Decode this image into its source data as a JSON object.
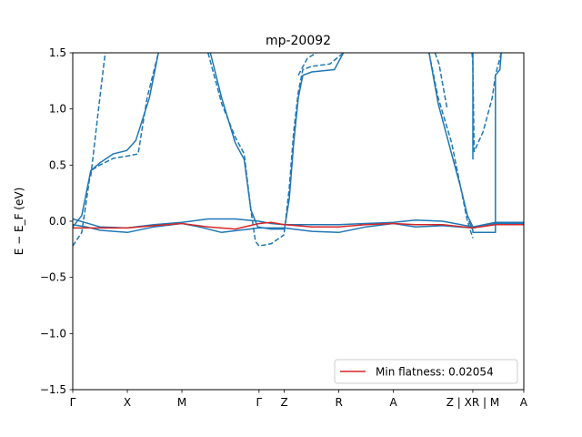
{
  "chart_data": {
    "type": "line",
    "title": "mp-20092",
    "ylabel": "E − E_F (eV)",
    "ylim": [
      -1.5,
      1.5
    ],
    "yticks": [
      1.5,
      1.0,
      0.5,
      0.0,
      -0.5,
      -1.0,
      -1.5
    ],
    "ytick_labels": [
      "1.5",
      "1.0",
      "0.5",
      "0.0",
      "−0.5",
      "−1.0",
      "−1.5"
    ],
    "xlim": [
      0,
      1
    ],
    "kpoints": [
      {
        "label": "Γ",
        "x": 0.0
      },
      {
        "label": "X",
        "x": 0.121
      },
      {
        "label": "M",
        "x": 0.242
      },
      {
        "label": "Γ",
        "x": 0.413
      },
      {
        "label": "Z",
        "x": 0.469
      },
      {
        "label": "R",
        "x": 0.59
      },
      {
        "label": "A",
        "x": 0.711
      },
      {
        "label": "Z | XR | M",
        "x": 0.887
      },
      {
        "label": "A",
        "x": 1.0
      }
    ],
    "band_color": "#1f77b4",
    "flat_color": "#d62728",
    "series": [
      {
        "style": "solid",
        "points": [
          [
            0,
            -0.05
          ],
          [
            0.02,
            0.05
          ],
          [
            0.04,
            0.45
          ],
          [
            0.06,
            0.52
          ],
          [
            0.09,
            0.6
          ],
          [
            0.12,
            0.63
          ],
          [
            0.14,
            0.72
          ],
          [
            0.17,
            1.1
          ],
          [
            0.19,
            1.5
          ]
        ]
      },
      {
        "style": "dashed",
        "points": [
          [
            0,
            -0.22
          ],
          [
            0.02,
            -0.1
          ],
          [
            0.04,
            0.45
          ],
          [
            0.06,
            0.5
          ],
          [
            0.09,
            0.56
          ],
          [
            0.12,
            0.58
          ],
          [
            0.145,
            0.6
          ],
          [
            0.165,
            1.1
          ],
          [
            0.19,
            1.5
          ]
        ]
      },
      {
        "style": "dashed",
        "points": [
          [
            0.04,
            0.4
          ],
          [
            0.06,
            1.1
          ],
          [
            0.072,
            1.5
          ]
        ]
      },
      {
        "style": "solid",
        "points": [
          [
            0.305,
            1.5
          ],
          [
            0.33,
            1.1
          ],
          [
            0.36,
            0.7
          ],
          [
            0.38,
            0.55
          ],
          [
            0.395,
            0.1
          ],
          [
            0.41,
            -0.05
          ],
          [
            0.44,
            -0.07
          ],
          [
            0.47,
            -0.07
          ]
        ]
      },
      {
        "style": "dashed",
        "points": [
          [
            0.3,
            1.5
          ],
          [
            0.33,
            1.05
          ],
          [
            0.36,
            0.75
          ],
          [
            0.38,
            0.6
          ],
          [
            0.395,
            0.1
          ],
          [
            0.405,
            -0.18
          ],
          [
            0.413,
            -0.22
          ],
          [
            0.44,
            -0.2
          ],
          [
            0.469,
            -0.12
          ]
        ]
      },
      {
        "style": "solid",
        "points": [
          [
            0.469,
            -0.08
          ],
          [
            0.48,
            0.2
          ],
          [
            0.49,
            0.7
          ],
          [
            0.5,
            1.1
          ],
          [
            0.51,
            1.3
          ],
          [
            0.53,
            1.33
          ],
          [
            0.58,
            1.35
          ],
          [
            0.6,
            1.5
          ]
        ]
      },
      {
        "style": "dashed",
        "points": [
          [
            0.469,
            -0.1
          ],
          [
            0.48,
            0.3
          ],
          [
            0.49,
            0.8
          ],
          [
            0.5,
            1.15
          ],
          [
            0.51,
            1.35
          ],
          [
            0.53,
            1.38
          ],
          [
            0.57,
            1.4
          ],
          [
            0.6,
            1.5
          ]
        ]
      },
      {
        "style": "dashed",
        "points": [
          [
            0.5,
            1.3
          ],
          [
            0.52,
            1.45
          ],
          [
            0.54,
            1.5
          ]
        ]
      },
      {
        "style": "solid",
        "points": [
          [
            0.79,
            1.5
          ],
          [
            0.81,
            1.05
          ],
          [
            0.84,
            0.6
          ],
          [
            0.86,
            0.3
          ],
          [
            0.875,
            0.05
          ],
          [
            0.887,
            -0.05
          ]
        ]
      },
      {
        "style": "dashed",
        "points": [
          [
            0.79,
            1.5
          ],
          [
            0.81,
            1.1
          ],
          [
            0.84,
            0.7
          ],
          [
            0.86,
            0.3
          ],
          [
            0.875,
            0.0
          ],
          [
            0.887,
            -0.15
          ]
        ]
      },
      {
        "style": "dashed",
        "points": [
          [
            0.803,
            1.5
          ],
          [
            0.812,
            1.4
          ],
          [
            0.83,
            1.0
          ]
        ]
      },
      {
        "style": "solid",
        "points": [
          [
            0.878,
            0.0
          ],
          [
            0.887,
            -0.08
          ],
          [
            0.887,
            -0.1
          ],
          [
            0.937,
            -0.1
          ],
          [
            0.937,
            1.3
          ],
          [
            0.947,
            1.35
          ],
          [
            0.95,
            1.5
          ]
        ]
      },
      {
        "style": "dashed",
        "points": [
          [
            0.885,
            1.5
          ],
          [
            0.887,
            1.4
          ],
          [
            0.89,
            0.62
          ],
          [
            0.91,
            0.8
          ],
          [
            0.93,
            1.1
          ],
          [
            0.937,
            1.3
          ],
          [
            0.95,
            1.5
          ]
        ]
      },
      {
        "style": "solid",
        "points": [
          [
            0.887,
            1.5
          ],
          [
            0.887,
            0.55
          ]
        ]
      },
      {
        "style": "solid",
        "points": [
          [
            0,
            0.02
          ],
          [
            0.06,
            -0.05
          ],
          [
            0.12,
            -0.06
          ],
          [
            0.18,
            -0.03
          ],
          [
            0.242,
            -0.01
          ],
          [
            0.3,
            0.02
          ],
          [
            0.36,
            0.02
          ],
          [
            0.413,
            0.0
          ],
          [
            0.44,
            -0.02
          ],
          [
            0.469,
            -0.03
          ],
          [
            0.53,
            -0.03
          ],
          [
            0.59,
            -0.03
          ],
          [
            0.65,
            -0.02
          ],
          [
            0.711,
            -0.01
          ],
          [
            0.76,
            0.01
          ],
          [
            0.82,
            0.0
          ],
          [
            0.887,
            -0.05
          ],
          [
            0.937,
            -0.01
          ],
          [
            1.0,
            -0.01
          ]
        ]
      },
      {
        "style": "solid",
        "points": [
          [
            0,
            -0.03
          ],
          [
            0.03,
            -0.05
          ],
          [
            0.06,
            -0.08
          ],
          [
            0.121,
            -0.1
          ],
          [
            0.18,
            -0.05
          ],
          [
            0.242,
            -0.02
          ],
          [
            0.28,
            -0.05
          ],
          [
            0.33,
            -0.1
          ],
          [
            0.37,
            -0.08
          ],
          [
            0.413,
            -0.06
          ],
          [
            0.469,
            -0.06
          ],
          [
            0.53,
            -0.09
          ],
          [
            0.59,
            -0.1
          ],
          [
            0.65,
            -0.05
          ],
          [
            0.711,
            -0.02
          ],
          [
            0.76,
            -0.05
          ],
          [
            0.82,
            -0.04
          ],
          [
            0.887,
            -0.06
          ],
          [
            0.937,
            -0.02
          ],
          [
            1.0,
            -0.02
          ]
        ]
      },
      {
        "style": "flat",
        "points": [
          [
            0,
            -0.06
          ],
          [
            0.06,
            -0.06
          ],
          [
            0.121,
            -0.06
          ],
          [
            0.18,
            -0.04
          ],
          [
            0.242,
            -0.02
          ],
          [
            0.3,
            -0.05
          ],
          [
            0.36,
            -0.07
          ],
          [
            0.413,
            -0.02
          ],
          [
            0.44,
            -0.01
          ],
          [
            0.469,
            -0.03
          ],
          [
            0.53,
            -0.05
          ],
          [
            0.59,
            -0.05
          ],
          [
            0.65,
            -0.03
          ],
          [
            0.711,
            -0.02
          ],
          [
            0.76,
            -0.03
          ],
          [
            0.82,
            -0.03
          ],
          [
            0.887,
            -0.06
          ],
          [
            0.937,
            -0.03
          ],
          [
            1.0,
            -0.03
          ]
        ]
      }
    ],
    "legend": {
      "label": "Min flatness: 0.02054",
      "placement": "lower-right"
    }
  }
}
